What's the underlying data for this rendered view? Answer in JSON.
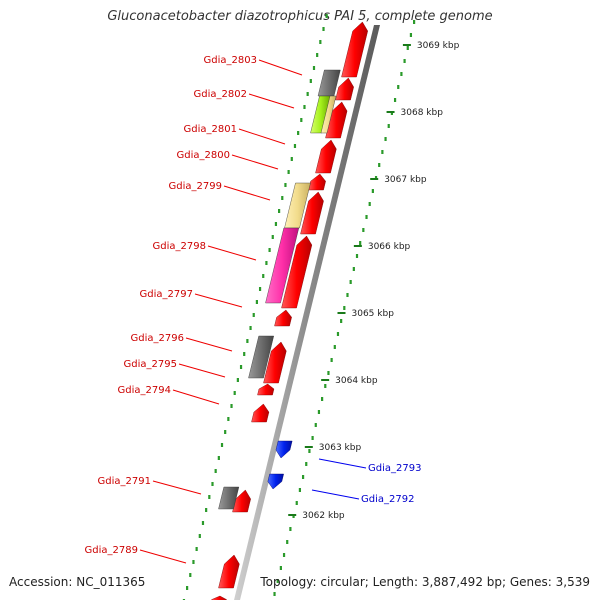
{
  "title": "Gluconacetobacter diazotrophicus PAI 5, complete genome",
  "footer": {
    "accession": "Accession: NC_011365",
    "summary": "Topology: circular; Length: 3,887,492 bp; Genes: 3,539"
  },
  "colors": {
    "backbone": "#888888",
    "forward_gene": "#ff0000",
    "reverse_gene": "#0000ff",
    "dots": "#228b22",
    "label_red": "#cc0000",
    "label_blue": "#0000cc"
  },
  "ticks": [
    {
      "label": "3069 kbp"
    },
    {
      "label": "3068 kbp"
    },
    {
      "label": "3067 kbp"
    },
    {
      "label": "3066 kbp"
    },
    {
      "label": "3065 kbp"
    },
    {
      "label": "3064 kbp"
    },
    {
      "label": "3063 kbp"
    },
    {
      "label": "3062 kbp"
    }
  ],
  "gene_labels": [
    {
      "name": "Gdia_2803",
      "color": "#cc0000"
    },
    {
      "name": "Gdia_2802",
      "color": "#cc0000"
    },
    {
      "name": "Gdia_2801",
      "color": "#cc0000"
    },
    {
      "name": "Gdia_2800",
      "color": "#cc0000"
    },
    {
      "name": "Gdia_2799",
      "color": "#cc0000"
    },
    {
      "name": "Gdia_2798",
      "color": "#cc0000"
    },
    {
      "name": "Gdia_2797",
      "color": "#cc0000"
    },
    {
      "name": "Gdia_2796",
      "color": "#cc0000"
    },
    {
      "name": "Gdia_2795",
      "color": "#cc0000"
    },
    {
      "name": "Gdia_2794",
      "color": "#cc0000"
    },
    {
      "name": "Gdia_2793",
      "color": "#0000cc"
    },
    {
      "name": "Gdia_2792",
      "color": "#0000cc"
    },
    {
      "name": "Gdia_2791",
      "color": "#cc0000"
    },
    {
      "name": "Gdia_2789",
      "color": "#cc0000"
    }
  ]
}
